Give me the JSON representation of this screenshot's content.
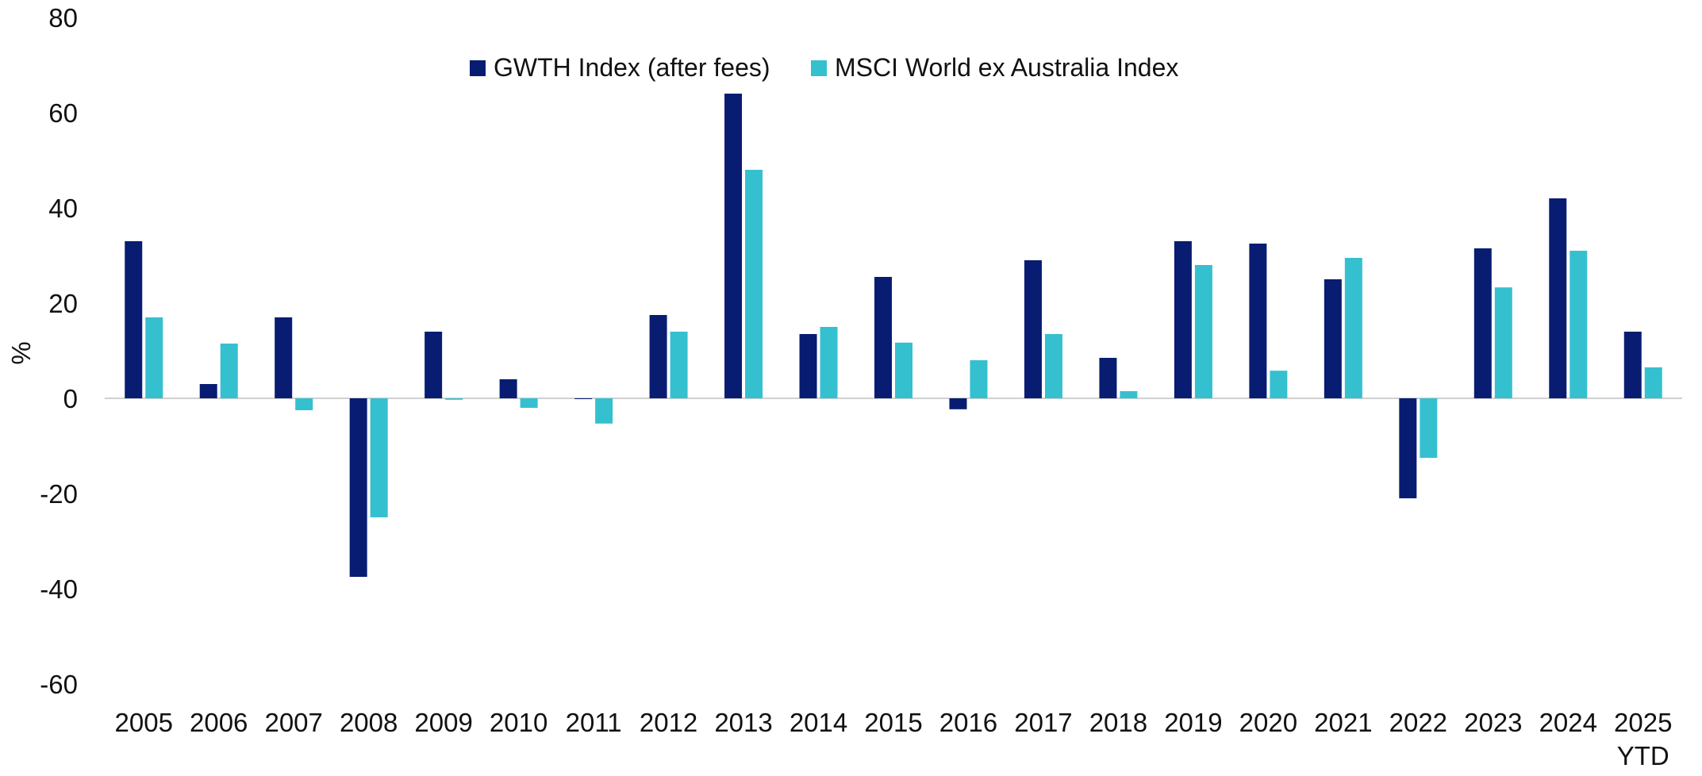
{
  "chart_data": {
    "type": "bar",
    "title": "",
    "xlabel": "",
    "ylabel": "%",
    "ylim": [
      -60,
      80
    ],
    "yticks": [
      80,
      60,
      40,
      20,
      0,
      -20,
      -40,
      -60
    ],
    "grid": false,
    "legend_position": "top-center",
    "categories": [
      "2005",
      "2006",
      "2007",
      "2008",
      "2009",
      "2010",
      "2011",
      "2012",
      "2013",
      "2014",
      "2015",
      "2016",
      "2017",
      "2018",
      "2019",
      "2020",
      "2021",
      "2022",
      "2023",
      "2024",
      "2025\nYTD"
    ],
    "series": [
      {
        "name": "GWTH Index (after fees)",
        "color": "#081c72",
        "values": [
          33,
          3,
          17,
          -37.5,
          14,
          4,
          0,
          17.5,
          64,
          13.5,
          25.5,
          -2.3,
          29,
          8.5,
          33,
          32.5,
          25,
          -21,
          31.5,
          42,
          14
        ]
      },
      {
        "name": "MSCI World ex Australia Index",
        "color": "#35c0d0",
        "values": [
          17,
          11.5,
          -2.5,
          -25,
          -0.3,
          -2,
          -5.3,
          14,
          48,
          15,
          11.7,
          8,
          13.5,
          1.5,
          28,
          5.8,
          29.5,
          -12.5,
          23.3,
          31,
          6.5
        ]
      }
    ]
  }
}
